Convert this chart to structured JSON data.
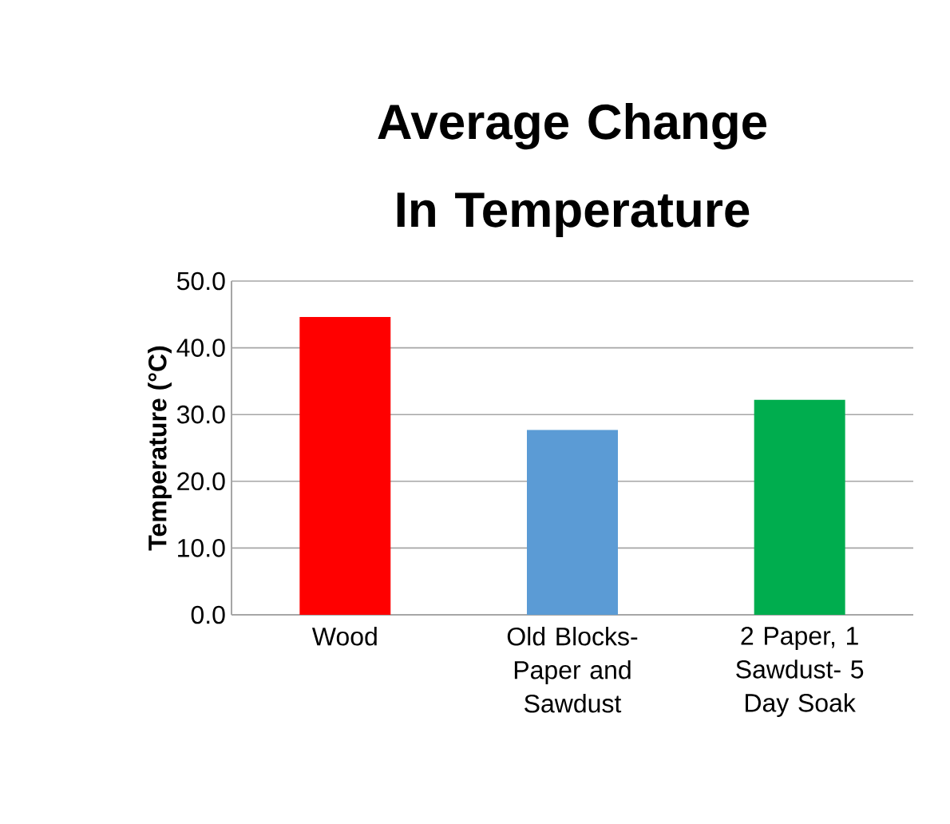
{
  "chart_data": {
    "type": "bar",
    "title": "Average Change In Temperature",
    "ylabel": "Temperature (°C)",
    "categories": [
      "Wood",
      "Old Blocks-Paper and Sawdust",
      "2 Paper, 1 Sawdust- 5 Day Soak"
    ],
    "values": [
      44.6,
      27.7,
      32.2
    ],
    "colors": [
      "#ff0000",
      "#5b9bd5",
      "#00ad4e"
    ],
    "ylim": [
      0,
      50
    ],
    "yticks": [
      {
        "value": 0,
        "label": "0.0"
      },
      {
        "value": 10,
        "label": "10.0"
      },
      {
        "value": 20,
        "label": "20.0"
      },
      {
        "value": 30,
        "label": "30.0"
      },
      {
        "value": 40,
        "label": "40.0"
      },
      {
        "value": 50,
        "label": "50.0"
      }
    ],
    "grid": "y"
  }
}
